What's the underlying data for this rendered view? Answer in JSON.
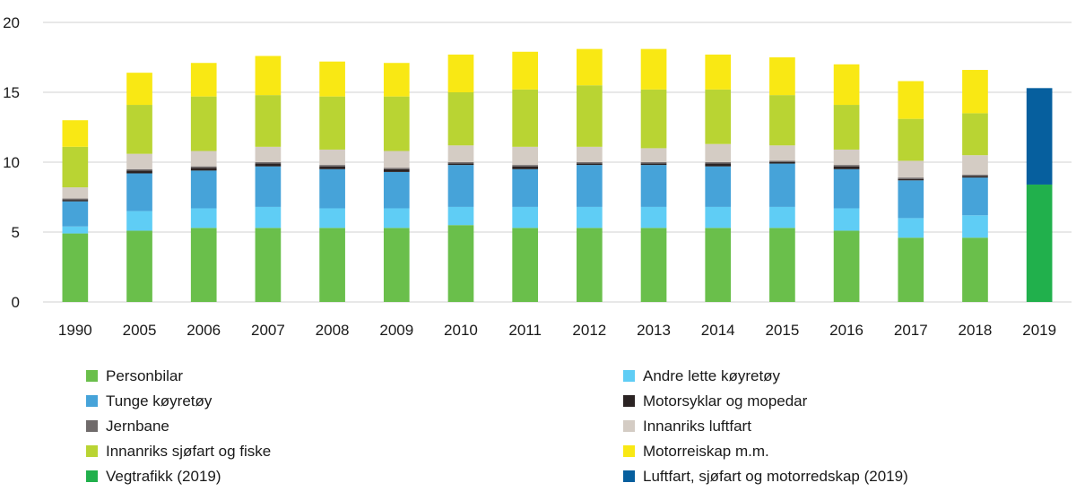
{
  "chart_data": {
    "type": "bar",
    "stacked": true,
    "title": "",
    "xlabel": "",
    "ylabel": "",
    "ylim": [
      0,
      20
    ],
    "yticks": [
      0,
      5,
      10,
      15,
      20
    ],
    "grid": "horizontal",
    "legend_position": "bottom",
    "categories": [
      "1990",
      "2005",
      "2006",
      "2007",
      "2008",
      "2009",
      "2010",
      "2011",
      "2012",
      "2013",
      "2014",
      "2015",
      "2016",
      "2017",
      "2018",
      "2019"
    ],
    "series": [
      {
        "name": "Personbilar",
        "color": "#6abf4b",
        "values": [
          4.9,
          5.1,
          5.3,
          5.3,
          5.3,
          5.3,
          5.5,
          5.3,
          5.3,
          5.3,
          5.3,
          5.3,
          5.1,
          4.6,
          4.6,
          null
        ]
      },
      {
        "name": "Andre lette køyretøy",
        "color": "#5fcdf5",
        "values": [
          0.5,
          1.4,
          1.4,
          1.5,
          1.4,
          1.4,
          1.3,
          1.5,
          1.5,
          1.5,
          1.5,
          1.5,
          1.6,
          1.4,
          1.6,
          null
        ]
      },
      {
        "name": "Tunge køyretøy",
        "color": "#46a3d9",
        "values": [
          1.8,
          2.7,
          2.7,
          2.9,
          2.8,
          2.6,
          3.0,
          2.7,
          3.0,
          3.0,
          2.9,
          3.1,
          2.8,
          2.7,
          2.7,
          null
        ]
      },
      {
        "name": "Motorsyklar og mopedar",
        "color": "#2b2323",
        "values": [
          0.1,
          0.2,
          0.2,
          0.2,
          0.2,
          0.2,
          0.1,
          0.2,
          0.1,
          0.1,
          0.2,
          0.1,
          0.2,
          0.1,
          0.1,
          null
        ]
      },
      {
        "name": "Jernbane",
        "color": "#706b6b",
        "values": [
          0.1,
          0.1,
          0.1,
          0.1,
          0.1,
          0.1,
          0.1,
          0.1,
          0.1,
          0.1,
          0.1,
          0.1,
          0.1,
          0.1,
          0.1,
          null
        ]
      },
      {
        "name": "Innanriks luftfart",
        "color": "#d4ccc4",
        "values": [
          0.8,
          1.1,
          1.1,
          1.1,
          1.1,
          1.2,
          1.2,
          1.3,
          1.1,
          1.0,
          1.3,
          1.1,
          1.1,
          1.2,
          1.4,
          null
        ]
      },
      {
        "name": "Innanriks sjøfart og fiske",
        "color": "#b9d433",
        "values": [
          2.9,
          3.5,
          3.9,
          3.7,
          3.8,
          3.9,
          3.8,
          4.1,
          4.4,
          4.2,
          3.9,
          3.6,
          3.2,
          3.0,
          3.0,
          null
        ]
      },
      {
        "name": "Motorreiskap m.m.",
        "color": "#f9e814",
        "values": [
          1.9,
          2.3,
          2.4,
          2.8,
          2.5,
          2.4,
          2.7,
          2.7,
          2.6,
          2.9,
          2.5,
          2.7,
          2.9,
          2.7,
          3.1,
          null
        ]
      },
      {
        "name": "Vegtrafikk (2019)",
        "color": "#21b04c",
        "values": [
          null,
          null,
          null,
          null,
          null,
          null,
          null,
          null,
          null,
          null,
          null,
          null,
          null,
          null,
          null,
          8.4
        ]
      },
      {
        "name": "Luftfart, sjøfart og motorredskap (2019)",
        "color": "#065f9e",
        "values": [
          null,
          null,
          null,
          null,
          null,
          null,
          null,
          null,
          null,
          null,
          null,
          null,
          null,
          null,
          null,
          6.9
        ]
      }
    ],
    "legend_order": [
      "Personbilar",
      "Andre lette køyretøy",
      "Tunge køyretøy",
      "Motorsyklar og mopedar",
      "Jernbane",
      "Innanriks luftfart",
      "Innanriks sjøfart og fiske",
      "Motorreiskap m.m.",
      "Vegtrafikk (2019)",
      "Luftfart, sjøfart og motorredskap (2019)"
    ]
  }
}
